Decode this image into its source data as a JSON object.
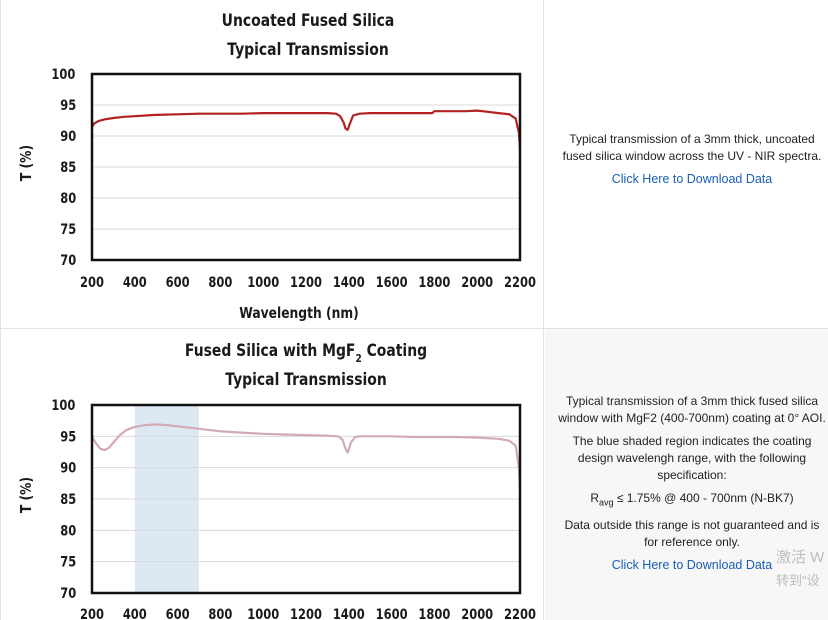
{
  "chart_data": [
    {
      "type": "line",
      "title": [
        "Uncoated Fused Silica",
        "Typical Transmission"
      ],
      "xlabel": "Wavelength (nm)",
      "ylabel": "T (%)",
      "xlim": [
        200,
        2200
      ],
      "ylim": [
        70,
        100
      ],
      "xticks": [
        "200",
        "400",
        "600",
        "800",
        "1000",
        "1200",
        "1400",
        "1600",
        "1800",
        "2000",
        "2200"
      ],
      "yticks": [
        "100",
        "95",
        "90",
        "85",
        "80",
        "75",
        "70"
      ],
      "grid": "horizontal",
      "series": [
        {
          "color": "#b22222",
          "x": [
            200,
            210,
            230,
            260,
            300,
            350,
            400,
            450,
            500,
            600,
            700,
            800,
            900,
            1000,
            1100,
            1200,
            1300,
            1340,
            1360,
            1375,
            1385,
            1395,
            1405,
            1420,
            1450,
            1500,
            1600,
            1700,
            1790,
            1800,
            1850,
            1900,
            1950,
            2000,
            2050,
            2100,
            2150,
            2180,
            2195,
            2200
          ],
          "y": [
            91.5,
            92.0,
            92.4,
            92.7,
            92.9,
            93.1,
            93.2,
            93.3,
            93.4,
            93.5,
            93.6,
            93.6,
            93.6,
            93.7,
            93.7,
            93.7,
            93.7,
            93.6,
            93.2,
            92.2,
            91.2,
            91.0,
            92.0,
            93.3,
            93.6,
            93.7,
            93.7,
            93.7,
            93.7,
            94.0,
            94.0,
            94.0,
            94.0,
            94.1,
            93.9,
            93.7,
            93.5,
            92.8,
            90.5,
            88.0
          ]
        }
      ]
    },
    {
      "type": "line",
      "title": [
        "Fused Silica with MgF",
        "2",
        " Coating",
        "Typical Transmission"
      ],
      "xlabel": "",
      "ylabel": "T (%)",
      "xlim": [
        200,
        2200
      ],
      "ylim": [
        70,
        100
      ],
      "xticks": [
        "200",
        "400",
        "600",
        "800",
        "1000",
        "1200",
        "1400",
        "1600",
        "1800",
        "2000",
        "2200"
      ],
      "yticks": [
        "100",
        "95",
        "90",
        "85",
        "80",
        "75",
        "70"
      ],
      "grid": "horizontal",
      "shaded_region": [
        400,
        700
      ],
      "shaded_color": "#dce9f5",
      "series": [
        {
          "color": "#d4a9b6",
          "x": [
            200,
            220,
            240,
            260,
            280,
            300,
            330,
            360,
            400,
            450,
            500,
            550,
            600,
            700,
            800,
            900,
            1000,
            1100,
            1200,
            1300,
            1350,
            1370,
            1385,
            1395,
            1410,
            1430,
            1450,
            1500,
            1600,
            1700,
            1800,
            1900,
            2000,
            2100,
            2150,
            2180,
            2195,
            2200
          ],
          "y": [
            95.0,
            93.8,
            93.0,
            92.8,
            93.2,
            94.0,
            95.2,
            96.0,
            96.5,
            96.8,
            96.9,
            96.8,
            96.6,
            96.2,
            95.8,
            95.6,
            95.4,
            95.3,
            95.2,
            95.1,
            95.0,
            94.5,
            93.0,
            92.4,
            94.0,
            94.9,
            95.0,
            95.0,
            95.0,
            94.9,
            94.9,
            94.9,
            94.8,
            94.6,
            94.3,
            93.5,
            90.0,
            86.5
          ]
        }
      ]
    }
  ],
  "panels": {
    "uncoated": {
      "description": "Typical transmission of a 3mm thick, uncoated fused silica window across the UV - NIR spectra.",
      "link": "Click Here to Download Data"
    },
    "coated": {
      "para1": "Typical transmission of a 3mm thick fused silica window with MgF2 (400-700nm) coating at 0° AOI.",
      "para2": "The blue shaded region indicates the coating design wavelengh range, with the following specification:",
      "spec_r": "R",
      "spec_sub": "avg",
      "spec_rest": " ≤ 1.75% @ 400 - 700nm (N-BK7)",
      "para3": "Data outside this range is not guaranteed and is for reference only.",
      "link": "Click Here to Download Data"
    }
  },
  "watermark": {
    "line1": "激活 W",
    "line2": "转到\"设"
  }
}
